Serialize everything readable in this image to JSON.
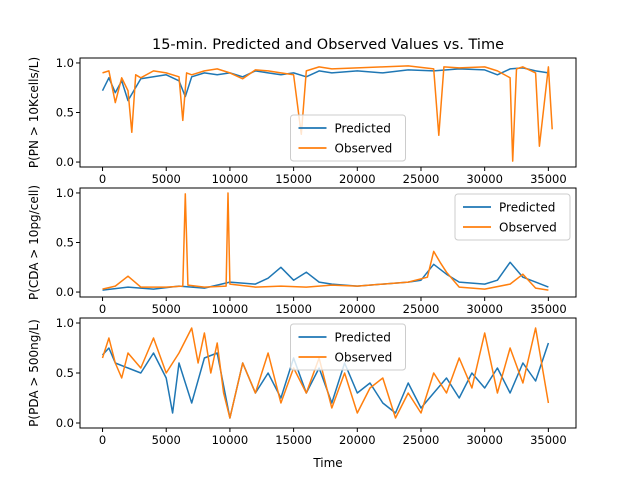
{
  "figure": {
    "title": "15-min. Predicted and Observed Values vs. Time",
    "xlabel": "Time"
  },
  "colors": {
    "predicted": "#1f77b4",
    "observed": "#ff7f0e"
  },
  "chart_data": [
    {
      "type": "line",
      "ylabel": "P(PN > 10Kcells/L)",
      "xlim": [
        -1770,
        37170
      ],
      "ylim": [
        -0.05,
        1.05
      ],
      "xticks": [
        0,
        5000,
        10000,
        15000,
        20000,
        25000,
        30000,
        35000
      ],
      "yticks": [
        0.0,
        0.5,
        1.0
      ],
      "ytick_labels": [
        "0.0",
        "0.5",
        "1.0"
      ],
      "legend": {
        "placement": "lower-center",
        "entries": [
          "Predicted",
          "Observed"
        ]
      },
      "series": [
        {
          "name": "Predicted",
          "x": [
            0,
            500,
            1000,
            1500,
            2000,
            3000,
            4000,
            5000,
            6000,
            6500,
            7000,
            8000,
            9000,
            10000,
            11000,
            12000,
            13000,
            14000,
            15000,
            16000,
            17000,
            18000,
            20000,
            22000,
            24000,
            26000,
            28000,
            30000,
            31000,
            32000,
            33000,
            34000,
            35000
          ],
          "y": [
            0.72,
            0.85,
            0.7,
            0.82,
            0.62,
            0.84,
            0.86,
            0.88,
            0.82,
            0.66,
            0.86,
            0.9,
            0.88,
            0.9,
            0.86,
            0.92,
            0.9,
            0.88,
            0.9,
            0.86,
            0.92,
            0.9,
            0.92,
            0.9,
            0.93,
            0.92,
            0.94,
            0.93,
            0.88,
            0.94,
            0.95,
            0.92,
            0.9
          ]
        },
        {
          "name": "Observed",
          "x": [
            0,
            500,
            1000,
            1500,
            2000,
            2300,
            2600,
            3000,
            4000,
            5000,
            6000,
            6300,
            6600,
            7000,
            8000,
            9000,
            10000,
            11000,
            12000,
            13000,
            14000,
            15000,
            15600,
            16000,
            17000,
            18000,
            20000,
            22000,
            24000,
            26000,
            26400,
            26800,
            28000,
            30000,
            31000,
            32000,
            32200,
            32500,
            33000,
            34000,
            34300,
            35000,
            35300
          ],
          "y": [
            0.9,
            0.92,
            0.6,
            0.85,
            0.72,
            0.3,
            0.88,
            0.85,
            0.92,
            0.9,
            0.86,
            0.42,
            0.9,
            0.88,
            0.92,
            0.94,
            0.9,
            0.84,
            0.93,
            0.92,
            0.9,
            0.88,
            0.28,
            0.92,
            0.96,
            0.94,
            0.95,
            0.96,
            0.97,
            0.94,
            0.27,
            0.96,
            0.95,
            0.96,
            0.92,
            0.85,
            0.01,
            0.94,
            0.96,
            0.9,
            0.16,
            0.96,
            0.33
          ]
        }
      ]
    },
    {
      "type": "line",
      "ylabel": "P(CDA > 10pg/cell)",
      "xlim": [
        -1770,
        37170
      ],
      "ylim": [
        -0.05,
        1.05
      ],
      "xticks": [
        0,
        5000,
        10000,
        15000,
        20000,
        25000,
        30000,
        35000
      ],
      "yticks": [
        0.0,
        0.5,
        1.0
      ],
      "ytick_labels": [
        "0.0",
        "0.5",
        "1.0"
      ],
      "legend": {
        "placement": "upper-right",
        "entries": [
          "Predicted",
          "Observed"
        ]
      },
      "series": [
        {
          "name": "Predicted",
          "x": [
            0,
            2000,
            4000,
            6000,
            8000,
            10000,
            12000,
            13000,
            14000,
            15000,
            16000,
            17000,
            18000,
            20000,
            22000,
            24000,
            25000,
            26000,
            27000,
            28000,
            30000,
            31000,
            32000,
            33000,
            34000,
            35000
          ],
          "y": [
            0.02,
            0.05,
            0.03,
            0.06,
            0.04,
            0.1,
            0.08,
            0.14,
            0.25,
            0.12,
            0.2,
            0.1,
            0.08,
            0.06,
            0.08,
            0.1,
            0.12,
            0.28,
            0.18,
            0.1,
            0.08,
            0.12,
            0.3,
            0.15,
            0.1,
            0.05
          ]
        },
        {
          "name": "Observed",
          "x": [
            0,
            1000,
            2000,
            3000,
            5000,
            6300,
            6500,
            6700,
            8000,
            9700,
            9850,
            10000,
            12000,
            14000,
            16000,
            18000,
            20000,
            22000,
            24000,
            25500,
            26000,
            26500,
            27000,
            28000,
            30000,
            32000,
            33000,
            34000,
            35000
          ],
          "y": [
            0.03,
            0.06,
            0.16,
            0.05,
            0.05,
            0.06,
            0.99,
            0.07,
            0.05,
            0.06,
            1.0,
            0.08,
            0.05,
            0.06,
            0.05,
            0.07,
            0.06,
            0.08,
            0.1,
            0.15,
            0.41,
            0.3,
            0.2,
            0.05,
            0.03,
            0.08,
            0.18,
            0.04,
            0.02
          ]
        }
      ]
    },
    {
      "type": "line",
      "ylabel": "P(PDA > 500ng/L)",
      "xlim": [
        -1770,
        37170
      ],
      "ylim": [
        -0.05,
        1.05
      ],
      "xticks": [
        0,
        5000,
        10000,
        15000,
        20000,
        25000,
        30000,
        35000
      ],
      "yticks": [
        0.0,
        0.5,
        1.0
      ],
      "ytick_labels": [
        "0.0",
        "0.5",
        "1.0"
      ],
      "legend": {
        "placement": "upper-center",
        "entries": [
          "Predicted",
          "Observed"
        ]
      },
      "series": [
        {
          "name": "Predicted",
          "x": [
            0,
            500,
            1000,
            2000,
            3000,
            4000,
            5000,
            5500,
            6000,
            7000,
            8000,
            9000,
            10000,
            11000,
            12000,
            13000,
            14000,
            15000,
            16000,
            17000,
            18000,
            19000,
            20000,
            21000,
            22000,
            23000,
            24000,
            25000,
            26000,
            27000,
            28000,
            29000,
            30000,
            31000,
            32000,
            33000,
            34000,
            35000
          ],
          "y": [
            0.68,
            0.75,
            0.6,
            0.55,
            0.5,
            0.7,
            0.45,
            0.1,
            0.6,
            0.2,
            0.65,
            0.7,
            0.05,
            0.6,
            0.3,
            0.5,
            0.25,
            0.65,
            0.3,
            0.55,
            0.2,
            0.6,
            0.3,
            0.4,
            0.2,
            0.1,
            0.4,
            0.15,
            0.3,
            0.45,
            0.25,
            0.5,
            0.35,
            0.55,
            0.3,
            0.6,
            0.42,
            0.8
          ]
        },
        {
          "name": "Observed",
          "x": [
            0,
            500,
            1000,
            1500,
            2000,
            3000,
            4000,
            5000,
            6000,
            7000,
            7500,
            8000,
            8500,
            9000,
            9500,
            10000,
            11000,
            12000,
            13000,
            14000,
            15000,
            16000,
            17000,
            18000,
            19000,
            20000,
            21000,
            22000,
            23000,
            24000,
            25000,
            26000,
            27000,
            28000,
            29000,
            30000,
            31000,
            32000,
            33000,
            34000,
            35000
          ],
          "y": [
            0.65,
            0.85,
            0.6,
            0.45,
            0.7,
            0.55,
            0.85,
            0.5,
            0.7,
            0.95,
            0.6,
            0.9,
            0.5,
            0.8,
            0.3,
            0.05,
            0.6,
            0.3,
            0.7,
            0.2,
            0.55,
            0.3,
            0.65,
            0.15,
            0.5,
            0.1,
            0.35,
            0.45,
            0.05,
            0.3,
            0.1,
            0.5,
            0.3,
            0.65,
            0.35,
            0.9,
            0.3,
            0.75,
            0.4,
            0.95,
            0.2
          ]
        }
      ]
    }
  ]
}
